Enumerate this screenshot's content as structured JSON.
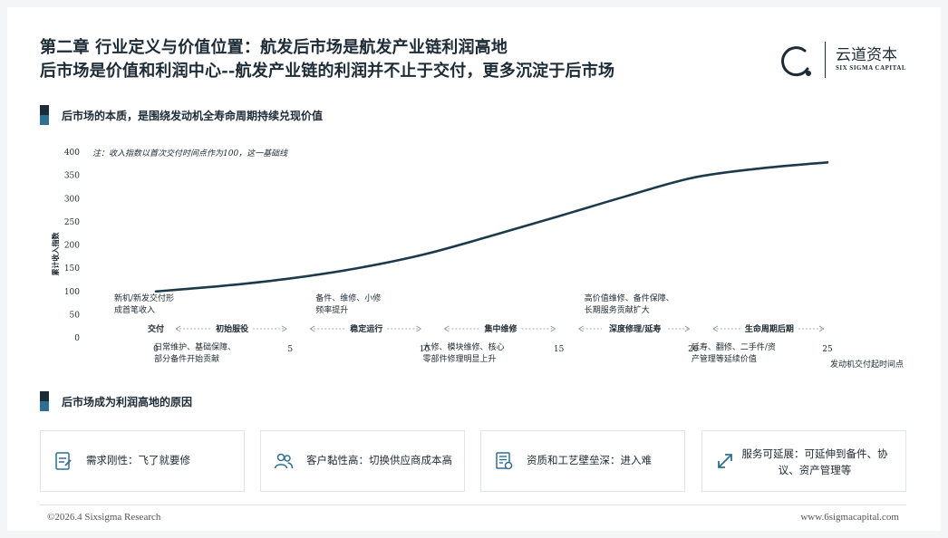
{
  "header": {
    "title_line1": "第二章 行业定义与价值位置：航发后市场是航发产业链利润高地",
    "title_line2": "后市场是价值和利润中心--航发产业链的利润并不止于交付，更多沉淀于后市场"
  },
  "logo": {
    "cn": "云道资本",
    "en": "SIX SIGMA CAPITAL"
  },
  "section1": {
    "title": "后市场的本质，是围绕发动机全寿命周期持续兑现价值"
  },
  "section2": {
    "title": "后市场成为利润高地的原因"
  },
  "chart_data": {
    "type": "line",
    "note": "注：收入指数以首次交付时间点作为100，这一基础线",
    "ylabel": "累计收入指数",
    "xlabel": "发动机交付起时间点",
    "ylim": [
      0,
      400
    ],
    "xlim": [
      0,
      25
    ],
    "y_ticks": [
      0,
      50,
      100,
      150,
      200,
      250,
      300,
      350,
      400
    ],
    "x_ticks": [
      0,
      5,
      10,
      15,
      20,
      25
    ],
    "series": [
      {
        "x": [
          0,
          2.5,
          5,
          7.5,
          10,
          12.5,
          15,
          17.5,
          20,
          22.5,
          25
        ],
        "values": [
          100,
          112,
          128,
          150,
          180,
          220,
          262,
          305,
          345,
          365,
          378
        ],
        "color": "#1c3a4a"
      }
    ],
    "phases": [
      {
        "label": "交付",
        "from": 0,
        "to": 0
      },
      {
        "label": "初始服役",
        "from": 0,
        "to": 5
      },
      {
        "label": "稳定运行",
        "from": 5,
        "to": 10
      },
      {
        "label": "集中维修",
        "from": 10,
        "to": 15
      },
      {
        "label": "深度修理/延寿",
        "from": 15,
        "to": 20
      },
      {
        "label": "生命周期后期",
        "from": 20,
        "to": 25
      }
    ],
    "annotations_above": [
      {
        "x": 0,
        "text": [
          "新机/新发交付形",
          "成首笔收入"
        ]
      },
      {
        "x": 7.5,
        "text": [
          "备件、维修、小修",
          "频率提升"
        ]
      },
      {
        "x": 17.5,
        "text": [
          "高价值维修、备件保障、",
          "长期服务贡献扩大"
        ]
      }
    ],
    "annotations_below": [
      {
        "x": 2.5,
        "text": [
          "日常维护、基础保障、",
          "部分备件开始贡献"
        ]
      },
      {
        "x": 12.5,
        "text": [
          "大修、模块维修、核心",
          "零部件修理明显上升"
        ]
      },
      {
        "x": 22.5,
        "text": [
          "延寿、翻修、二手件/资",
          "产管理等延续价值"
        ]
      }
    ]
  },
  "cards": [
    {
      "icon": "checklist-icon",
      "label": "需求刚性：飞了就要修"
    },
    {
      "icon": "users-icon",
      "label": "客户黏性高：切换供应商成本高"
    },
    {
      "icon": "certificate-icon",
      "label": "资质和工艺壁垒深：进入难"
    },
    {
      "icon": "expand-arrows-icon",
      "label": "服务可延展：可延伸到备件、协议、资产管理等"
    }
  ],
  "footer": {
    "left": "©2026.4 Sixsigma Research",
    "right": "www.6sigmacapital.com"
  },
  "colors": {
    "primary": "#1c2b36",
    "accent": "#2f6f92",
    "line": "#1c3a4a"
  }
}
